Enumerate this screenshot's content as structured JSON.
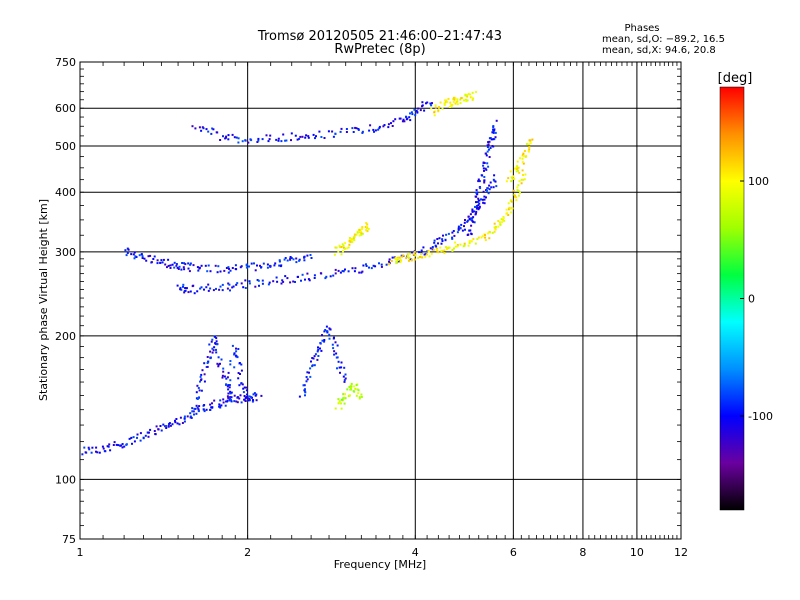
{
  "chart_data": {
    "type": "scatter",
    "title": "Tromsø 20120505 21:46:00–21:47:43",
    "subtitle": "RwPretec (8p)",
    "xlabel": "Frequency [MHz]",
    "ylabel": "Stationary phase Virtual Height [km]",
    "x_scale": "log",
    "y_scale": "log",
    "xlim": [
      1,
      12
    ],
    "ylim": [
      75,
      750
    ],
    "x_ticks": [
      1,
      2,
      4,
      6,
      8,
      10,
      12
    ],
    "y_ticks": [
      75,
      100,
      200,
      300,
      400,
      500,
      600,
      750
    ],
    "grid": true,
    "phases": {
      "title": "Phases",
      "line1": "mean, sd,O: −89.2, 16.5",
      "line2": "mean, sd,X:  94.6, 20.8"
    },
    "colorbar": {
      "label": "[deg]",
      "range": [
        -180,
        180
      ],
      "ticks": [
        100,
        0,
        -100
      ],
      "colors": [
        "#000000",
        "#6a00a0",
        "#0000ff",
        "#0090ff",
        "#00ffff",
        "#00ff40",
        "#a0ff00",
        "#ffff00",
        "#ff9000",
        "#ff0000"
      ]
    },
    "traces": [
      {
        "name": "",
        "phase": -100,
        "x": [
          1.0,
          1.1,
          1.2,
          1.3,
          1.4,
          1.5,
          1.6,
          1.7,
          1.8,
          1.9,
          2.0,
          2.1
        ],
        "y": [
          115,
          116,
          119,
          123,
          128,
          133,
          138,
          142,
          145,
          147,
          148,
          149
        ]
      },
      {
        "name": "",
        "phase": -100,
        "x": [
          1.5,
          1.6,
          1.8,
          2.0,
          2.3,
          2.6,
          3.0,
          3.4,
          3.8,
          4.2,
          4.5,
          4.8,
          5.0,
          5.2,
          5.4,
          5.6
        ],
        "y": [
          252,
          250,
          253,
          257,
          262,
          266,
          272,
          280,
          290,
          302,
          318,
          335,
          352,
          375,
          400,
          430
        ]
      },
      {
        "name": "",
        "phase": -100,
        "x": [
          1.2,
          1.3,
          1.4,
          1.5,
          1.6,
          1.8,
          2.0,
          2.2,
          2.4,
          2.6
        ],
        "y": [
          300,
          292,
          285,
          280,
          278,
          276,
          278,
          282,
          288,
          295
        ]
      },
      {
        "name": "",
        "phase": -100,
        "x": [
          5.0,
          5.1,
          5.2,
          5.3,
          5.4,
          5.5,
          5.6
        ],
        "y": [
          320,
          360,
          400,
          440,
          480,
          520,
          560
        ]
      },
      {
        "name": "",
        "phase": -100,
        "x": [
          1.6,
          1.8,
          2.0,
          2.3,
          2.6,
          3.0,
          3.4,
          3.8,
          4.0,
          4.3
        ],
        "y": [
          555,
          520,
          515,
          520,
          525,
          535,
          545,
          565,
          590,
          620
        ]
      },
      {
        "name": "",
        "phase": -100,
        "x": [
          1.6,
          1.65,
          1.7,
          1.75,
          1.8,
          1.85,
          1.9,
          1.95,
          2.0
        ],
        "y": [
          140,
          160,
          180,
          200,
          170,
          150,
          190,
          160,
          145
        ]
      },
      {
        "name": "",
        "phase": -100,
        "x": [
          2.5,
          2.6,
          2.7,
          2.8,
          2.9,
          3.0
        ],
        "y": [
          150,
          170,
          190,
          210,
          180,
          160
        ]
      },
      {
        "name": "",
        "phase": 100,
        "x": [
          3.6,
          3.8,
          4.0,
          4.3,
          4.6,
          5.0,
          5.4,
          5.7,
          5.9,
          6.1,
          6.3
        ],
        "y": [
          285,
          290,
          295,
          300,
          305,
          312,
          325,
          345,
          370,
          400,
          440
        ]
      },
      {
        "name": "",
        "phase": 100,
        "x": [
          2.9,
          3.0,
          3.1,
          3.2,
          3.3
        ],
        "y": [
          300,
          310,
          320,
          330,
          340
        ]
      },
      {
        "name": "",
        "phase": 100,
        "x": [
          4.3,
          4.5,
          4.7,
          4.9,
          5.1
        ],
        "y": [
          590,
          610,
          620,
          630,
          640
        ]
      },
      {
        "name": "",
        "phase": 70,
        "x": [
          2.9,
          3.0,
          3.1,
          3.2
        ],
        "y": [
          142,
          150,
          158,
          148
        ]
      },
      {
        "name": "",
        "phase": 100,
        "x": [
          5.9,
          6.1,
          6.3,
          6.5
        ],
        "y": [
          420,
          450,
          480,
          520
        ]
      }
    ]
  }
}
